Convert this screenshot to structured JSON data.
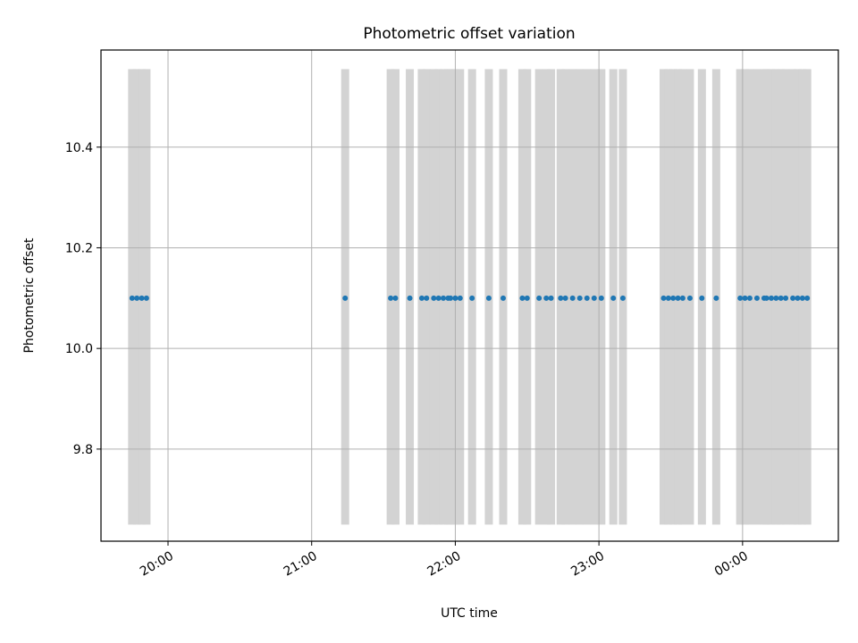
{
  "chart_data": {
    "type": "scatter",
    "title": "Photometric offset variation",
    "xlabel": "UTC time",
    "ylabel": "Photometric offset",
    "xlim": [
      "19:32",
      "00:40"
    ],
    "ylim": [
      9.617,
      10.593
    ],
    "x_ticks": [
      "20:00",
      "21:00",
      "22:00",
      "23:00",
      "00:00"
    ],
    "y_ticks": [
      "9.8",
      "10.0",
      "10.2",
      "10.4"
    ],
    "grid": true,
    "colors": {
      "points": "#1f77b4",
      "bands": "#d3d3d3",
      "grid": "#b0b0b0"
    },
    "band_extent": [
      9.65,
      10.555
    ],
    "series": [
      {
        "y_value": 10.1,
        "x": [
          "19:45",
          "19:47",
          "19:49",
          "19:51",
          "21:14",
          "21:33",
          "21:35",
          "21:41",
          "21:46",
          "21:48",
          "21:51",
          "21:53",
          "21:55",
          "21:57",
          "21:58",
          "22:00",
          "22:02",
          "22:07",
          "22:14",
          "22:20",
          "22:28",
          "22:30",
          "22:35",
          "22:38",
          "22:40",
          "22:44",
          "22:46",
          "22:49",
          "22:52",
          "22:55",
          "22:58",
          "23:01",
          "23:06",
          "23:10",
          "23:27",
          "23:29",
          "23:31",
          "23:33",
          "23:35",
          "23:38",
          "23:43",
          "23:49",
          "23:59",
          "24:01",
          "24:03",
          "24:06",
          "24:09",
          "24:10",
          "24:12",
          "24:14",
          "24:16",
          "24:18",
          "24:21",
          "24:23",
          "24:25",
          "24:27"
        ]
      }
    ]
  }
}
